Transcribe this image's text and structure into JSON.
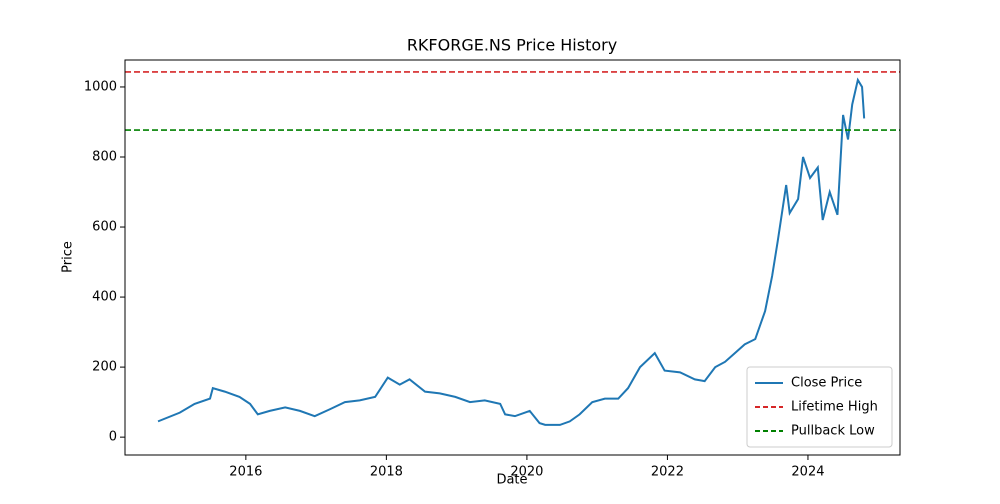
{
  "chart_data": {
    "type": "line",
    "title": "RKFORGE.NS Price History",
    "xlabel": "Date",
    "ylabel": "Price",
    "x": [
      2014.75,
      2015.06,
      2015.27,
      2015.49,
      2015.53,
      2015.7,
      2015.91,
      2016.06,
      2016.17,
      2016.34,
      2016.56,
      2016.77,
      2016.98,
      2017.2,
      2017.41,
      2017.62,
      2017.84,
      2018.02,
      2018.19,
      2018.33,
      2018.55,
      2018.76,
      2018.98,
      2019.19,
      2019.4,
      2019.62,
      2019.69,
      2019.83,
      2020.04,
      2020.18,
      2020.26,
      2020.47,
      2020.61,
      2020.75,
      2020.93,
      2021.11,
      2021.3,
      2021.44,
      2021.61,
      2021.82,
      2021.96,
      2022.18,
      2022.39,
      2022.53,
      2022.68,
      2022.82,
      2022.96,
      2023.1,
      2023.25,
      2023.39,
      2023.49,
      2023.57,
      2023.69,
      2023.74,
      2023.86,
      2023.93,
      2024.03,
      2024.14,
      2024.21,
      2024.31,
      2024.42,
      2024.5,
      2024.57,
      2024.63,
      2024.71,
      2024.77,
      2024.8
    ],
    "series": [
      {
        "name": "Close Price",
        "color": "#1f77b4",
        "values": [
          45,
          70,
          95,
          110,
          140,
          130,
          115,
          95,
          65,
          75,
          85,
          75,
          60,
          80,
          100,
          105,
          115,
          170,
          150,
          165,
          130,
          125,
          115,
          100,
          105,
          95,
          65,
          60,
          75,
          40,
          35,
          35,
          45,
          65,
          100,
          110,
          110,
          140,
          200,
          240,
          190,
          185,
          165,
          160,
          200,
          215,
          240,
          265,
          280,
          360,
          460,
          560,
          720,
          640,
          680,
          800,
          740,
          770,
          620,
          700,
          635,
          920,
          850,
          950,
          1020,
          1000,
          910
        ]
      }
    ],
    "hlines": [
      {
        "name": "Lifetime High",
        "color": "#d62728",
        "value": 1043
      },
      {
        "name": "Pullback Low",
        "color": "#008000",
        "value": 877
      }
    ],
    "xlim": [
      2014.28,
      2025.31
    ],
    "xticks": [
      2016,
      2018,
      2020,
      2022,
      2024
    ],
    "ylim": [
      -51,
      1077
    ],
    "yticks": [
      0,
      200,
      400,
      600,
      800,
      1000
    ],
    "legend": "lower right"
  }
}
